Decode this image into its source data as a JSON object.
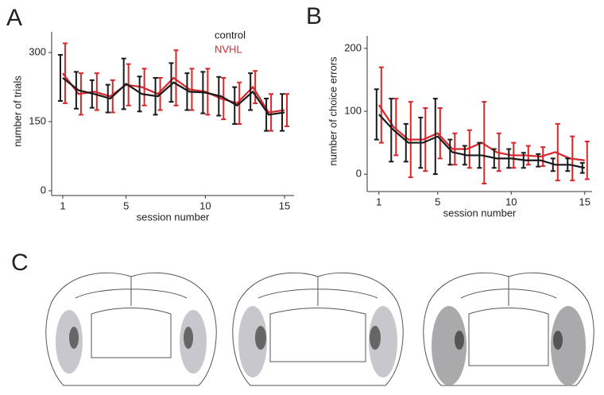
{
  "chart_data": [
    {
      "type": "line",
      "panel": "A",
      "ylabel": "number of trials",
      "xlabel": "session number",
      "x": [
        1,
        2,
        3,
        4,
        5,
        6,
        7,
        8,
        9,
        10,
        11,
        12,
        13,
        14,
        15
      ],
      "xlim": [
        0.3,
        15.6
      ],
      "xticks": [
        1,
        5,
        10,
        15
      ],
      "ylim": [
        0,
        345
      ],
      "yticks": [
        0,
        150,
        300
      ],
      "legend": "upper right",
      "series": [
        {
          "name": "control",
          "color": "#1a1a1a",
          "values": [
            245,
            218,
            210,
            200,
            232,
            210,
            205,
            235,
            215,
            213,
            205,
            185,
            215,
            165,
            170
          ],
          "errors": [
            50,
            40,
            30,
            30,
            55,
            38,
            40,
            42,
            40,
            45,
            42,
            40,
            40,
            35,
            40
          ]
        },
        {
          "name": "NVHL",
          "color": "#d8262b",
          "values": [
            255,
            210,
            215,
            205,
            230,
            225,
            210,
            245,
            220,
            215,
            200,
            190,
            225,
            170,
            175
          ],
          "errors": [
            65,
            45,
            40,
            35,
            45,
            40,
            35,
            60,
            45,
            50,
            45,
            45,
            35,
            40,
            35
          ]
        }
      ]
    },
    {
      "type": "line",
      "panel": "B",
      "ylabel": "number of choice errors",
      "xlabel": "session number",
      "x": [
        1,
        2,
        3,
        4,
        5,
        6,
        7,
        8,
        9,
        10,
        11,
        12,
        13,
        14,
        15
      ],
      "xlim": [
        0.2,
        15.5
      ],
      "xticks": [
        1,
        5,
        10,
        15
      ],
      "ylim": [
        -20,
        220
      ],
      "yticks": [
        0,
        100,
        200
      ],
      "series": [
        {
          "name": "control",
          "color": "#1a1a1a",
          "values": [
            95,
            70,
            50,
            50,
            60,
            35,
            30,
            30,
            25,
            25,
            22,
            22,
            15,
            15,
            10
          ],
          "errors": [
            40,
            50,
            30,
            40,
            60,
            20,
            15,
            20,
            15,
            15,
            12,
            10,
            10,
            10,
            8
          ]
        },
        {
          "name": "NVHL",
          "color": "#d8262b",
          "values": [
            110,
            75,
            55,
            55,
            65,
            40,
            40,
            50,
            35,
            30,
            30,
            28,
            35,
            25,
            22
          ],
          "errors": [
            60,
            45,
            60,
            50,
            40,
            25,
            30,
            65,
            30,
            20,
            15,
            15,
            45,
            35,
            30
          ]
        }
      ]
    }
  ],
  "figure_c": {
    "label": "C"
  }
}
